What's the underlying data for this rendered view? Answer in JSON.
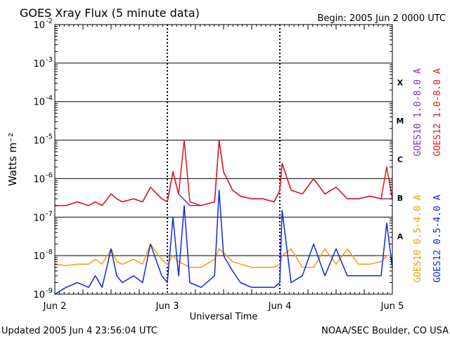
{
  "header": {
    "title": "GOES Xray Flux (5 minute data)",
    "begin": "Begin:  2005 Jun 2 0000 UTC"
  },
  "footer": {
    "updated": "Updated 2005 Jun  4 23:56:04 UTC",
    "credit": "NOAA/SEC Boulder, CO USA"
  },
  "colors": {
    "goes10_long": "#7a2fb5",
    "goes12_long": "#e01818",
    "goes10_short": "#f0a000",
    "goes12_short": "#1028e0"
  },
  "chart_data": {
    "type": "line",
    "title": "GOES Xray Flux (5 minute data)",
    "xlabel": "Universal Time",
    "ylabel": "Watts m⁻²",
    "yscale": "log",
    "ylim": [
      1e-09,
      0.01
    ],
    "xlim": [
      0,
      3
    ],
    "x_ticks": [
      {
        "x": 0,
        "label": "Jun 2"
      },
      {
        "x": 1,
        "label": "Jun 3"
      },
      {
        "x": 2,
        "label": "Jun 4"
      },
      {
        "x": 3,
        "label": "Jun 5"
      }
    ],
    "y_ticks": [
      {
        "exp": -2,
        "label": "10",
        "sup": "-2"
      },
      {
        "exp": -3,
        "label": "10",
        "sup": "-3"
      },
      {
        "exp": -4,
        "label": "10",
        "sup": "-4"
      },
      {
        "exp": -5,
        "label": "10",
        "sup": "-5"
      },
      {
        "exp": -6,
        "label": "10",
        "sup": "-6"
      },
      {
        "exp": -7,
        "label": "10",
        "sup": "-7"
      },
      {
        "exp": -8,
        "label": "10",
        "sup": "-8"
      },
      {
        "exp": -9,
        "label": "10",
        "sup": "-9"
      }
    ],
    "flare_classes": [
      {
        "label": "X",
        "exp": -3.5
      },
      {
        "label": "M",
        "exp": -4.5
      },
      {
        "label": "C",
        "exp": -5.5
      },
      {
        "label": "B",
        "exp": -6.5
      },
      {
        "label": "A",
        "exp": -7.5
      }
    ],
    "grid": true,
    "legend_right": [
      {
        "name": "GOES10 1.0-8.0 A",
        "color": "#7a2fb5"
      },
      {
        "name": "GOES12 1.0-8.0 A",
        "color": "#e01818"
      },
      {
        "name": "GOES10 0.5-4.0 A",
        "color": "#f0a000"
      },
      {
        "name": "GOES12 0.5-4.0 A",
        "color": "#1028e0"
      }
    ],
    "series": [
      {
        "name": "GOES10 1.0-8.0 A",
        "color": "#7a2fb5",
        "x": [
          0,
          0.1,
          0.2,
          0.3,
          0.36,
          0.42,
          0.5,
          0.55,
          0.6,
          0.7,
          0.78,
          0.85,
          0.95,
          1.0,
          1.05,
          1.1,
          1.2,
          1.3,
          1.42,
          1.46,
          1.5,
          1.58,
          1.65,
          1.75,
          1.85,
          1.95,
          2.0,
          2.02,
          2.1,
          2.2,
          2.3,
          2.4,
          2.5,
          2.6,
          2.7,
          2.8,
          2.9,
          2.95,
          3.0
        ],
        "y": [
          2e-07,
          2e-07,
          2.5e-07,
          2e-07,
          2.5e-07,
          2e-07,
          4e-07,
          3e-07,
          2.5e-07,
          3e-07,
          2.5e-07,
          6e-07,
          3e-07,
          2.5e-07,
          1.5e-06,
          4e-07,
          2e-07,
          2e-07,
          2.5e-07,
          1e-05,
          1.5e-06,
          5e-07,
          3.5e-07,
          3e-07,
          3e-07,
          2.5e-07,
          5e-07,
          2.5e-06,
          5e-07,
          4e-07,
          1e-06,
          4e-07,
          6e-07,
          3e-07,
          3e-07,
          3.5e-07,
          3e-07,
          3e-07,
          3e-07
        ]
      },
      {
        "name": "GOES12 1.0-8.0 A",
        "color": "#e01818",
        "x": [
          0,
          0.1,
          0.2,
          0.3,
          0.36,
          0.42,
          0.5,
          0.55,
          0.6,
          0.7,
          0.78,
          0.85,
          0.95,
          1.0,
          1.05,
          1.1,
          1.15,
          1.2,
          1.3,
          1.42,
          1.46,
          1.5,
          1.58,
          1.65,
          1.75,
          1.85,
          1.95,
          2.0,
          2.02,
          2.1,
          2.2,
          2.3,
          2.4,
          2.5,
          2.6,
          2.7,
          2.8,
          2.9,
          2.95,
          3.0
        ],
        "y": [
          2e-07,
          2e-07,
          2.5e-07,
          2e-07,
          2.5e-07,
          2e-07,
          4e-07,
          3e-07,
          2.5e-07,
          3e-07,
          2.5e-07,
          6e-07,
          3e-07,
          2.5e-07,
          1.5e-06,
          4e-07,
          1e-05,
          2.5e-07,
          2e-07,
          2.5e-07,
          1e-05,
          1.5e-06,
          5e-07,
          3.5e-07,
          3e-07,
          3e-07,
          2.5e-07,
          5e-07,
          2.5e-06,
          5e-07,
          4e-07,
          1e-06,
          4e-07,
          6e-07,
          3e-07,
          3e-07,
          3.5e-07,
          3e-07,
          2e-06,
          3e-07
        ]
      },
      {
        "name": "GOES10 0.5-4.0 A",
        "color": "#f0a000",
        "x": [
          0,
          0.1,
          0.2,
          0.3,
          0.36,
          0.42,
          0.5,
          0.55,
          0.6,
          0.7,
          0.78,
          0.85,
          0.95,
          1.0,
          1.05,
          1.1,
          1.2,
          1.3,
          1.42,
          1.46,
          1.5,
          1.58,
          1.65,
          1.75,
          1.85,
          1.95,
          2.0,
          2.02,
          2.1,
          2.2,
          2.3,
          2.4,
          2.5,
          2.6,
          2.7,
          2.8,
          2.9,
          2.95,
          3.0
        ],
        "y": [
          6e-09,
          5.5e-09,
          6e-09,
          6e-09,
          8e-09,
          6e-09,
          1.5e-08,
          7e-09,
          6e-09,
          8e-09,
          6e-09,
          2e-08,
          8e-09,
          6e-09,
          1e-08,
          7e-09,
          5e-09,
          5e-09,
          8e-09,
          1.5e-08,
          1.2e-08,
          7e-09,
          6e-09,
          5e-09,
          5e-09,
          5e-09,
          6e-09,
          1e-08,
          1.5e-08,
          5e-09,
          5e-09,
          1.5e-08,
          6e-09,
          1.5e-08,
          6e-09,
          6e-09,
          7e-09,
          1e-08,
          1e-08
        ]
      },
      {
        "name": "GOES12 0.5-4.0 A",
        "color": "#1028e0",
        "x": [
          0,
          0.1,
          0.2,
          0.3,
          0.36,
          0.42,
          0.5,
          0.55,
          0.6,
          0.7,
          0.78,
          0.85,
          0.95,
          1.0,
          1.05,
          1.1,
          1.15,
          1.2,
          1.3,
          1.42,
          1.46,
          1.5,
          1.58,
          1.65,
          1.75,
          1.85,
          1.95,
          2.0,
          2.02,
          2.1,
          2.2,
          2.3,
          2.4,
          2.5,
          2.6,
          2.7,
          2.8,
          2.9,
          2.95,
          3.0
        ],
        "y": [
          1e-09,
          1.5e-09,
          2e-09,
          1.5e-09,
          3e-09,
          1.5e-09,
          1.5e-08,
          3e-09,
          2e-09,
          3e-09,
          2e-09,
          2e-08,
          3e-09,
          2e-09,
          1e-07,
          3e-09,
          2e-07,
          2e-09,
          1.5e-09,
          3e-09,
          5e-07,
          1e-08,
          4e-09,
          2e-09,
          1.5e-09,
          1.5e-09,
          1.5e-09,
          2e-09,
          1.5e-07,
          2e-09,
          3e-09,
          2e-08,
          3e-09,
          1.5e-08,
          3e-09,
          3e-09,
          3e-09,
          3e-09,
          7e-08,
          5e-09
        ]
      }
    ]
  }
}
